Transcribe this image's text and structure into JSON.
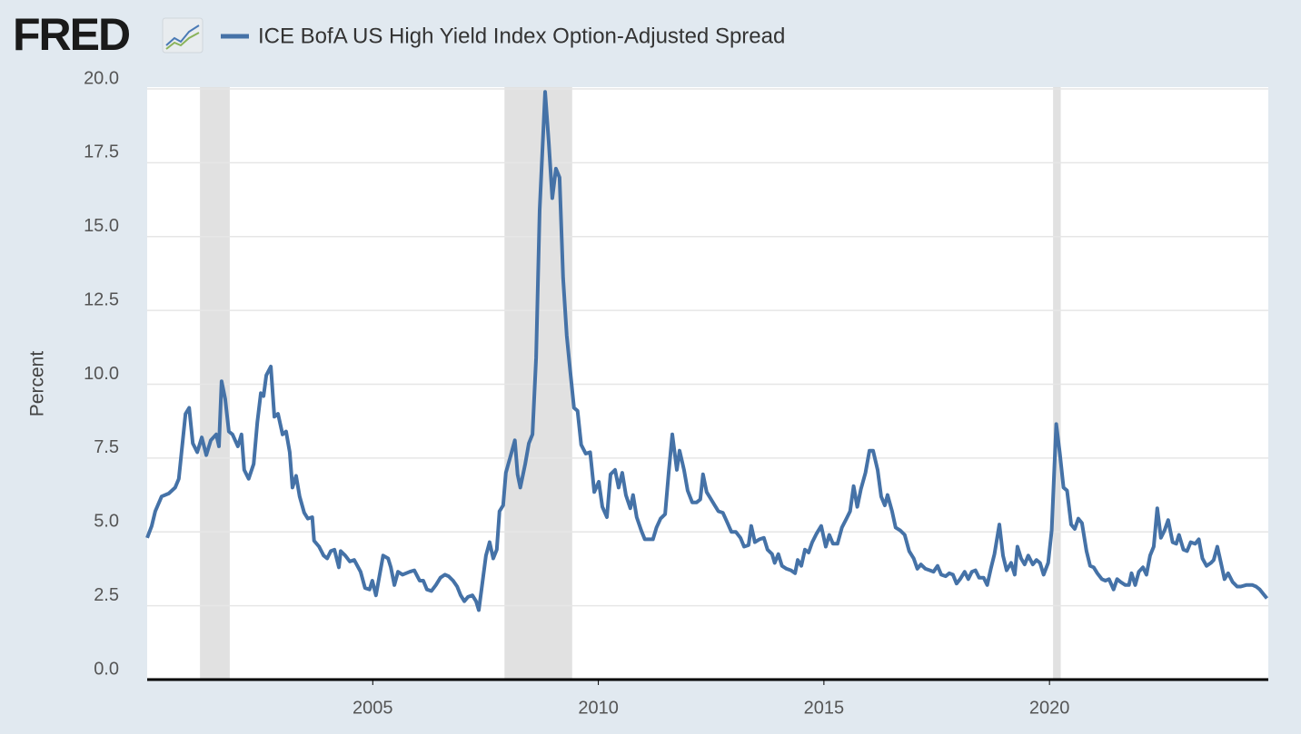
{
  "chart_data": {
    "type": "line",
    "source": "FRED",
    "ylabel": "Percent",
    "xlim": [
      2000,
      2024.85
    ],
    "xticks": [
      2005,
      2010,
      2015,
      2020
    ],
    "ylim": [
      0,
      20
    ],
    "yticks": [
      {
        "value": 0,
        "label": "0.0"
      },
      2.5,
      {
        "value": 5,
        "label": "5.0"
      },
      7.5,
      {
        "value": 10,
        "label": "10.0"
      },
      12.5,
      {
        "value": 15,
        "label": "15.0"
      },
      17.5,
      {
        "value": 20,
        "label": "20.0"
      }
    ],
    "grid": true,
    "recessions": [
      [
        2001.17,
        2001.83
      ],
      [
        2007.92,
        2009.42
      ],
      [
        2020.08,
        2020.25
      ]
    ],
    "recession_color": "#e1e1e1",
    "x": [
      2000.0,
      2000.1,
      2000.18,
      2000.32,
      2000.48,
      2000.62,
      2000.7,
      2000.85,
      2000.93,
      2001.01,
      2001.11,
      2001.21,
      2001.31,
      2001.41,
      2001.53,
      2001.59,
      2001.65,
      2001.73,
      2001.81,
      2001.89,
      2002.01,
      2002.09,
      2002.15,
      2002.25,
      2002.36,
      2002.44,
      2002.52,
      2002.58,
      2002.64,
      2002.74,
      2002.82,
      2002.9,
      2003.0,
      2003.08,
      2003.16,
      2003.22,
      2003.3,
      2003.38,
      2003.48,
      2003.56,
      2003.66,
      2003.7,
      2003.81,
      2003.91,
      2003.99,
      2004.07,
      2004.15,
      2004.25,
      2004.29,
      2004.39,
      2004.49,
      2004.59,
      2004.73,
      2004.83,
      2004.93,
      2004.99,
      2005.07,
      2005.13,
      2005.23,
      2005.34,
      2005.4,
      2005.48,
      2005.56,
      2005.66,
      2005.74,
      2005.82,
      2005.92,
      2006.04,
      2006.12,
      2006.2,
      2006.3,
      2006.4,
      2006.5,
      2006.6,
      2006.68,
      2006.78,
      2006.87,
      2006.95,
      2007.03,
      2007.11,
      2007.21,
      2007.29,
      2007.35,
      2007.41,
      2007.51,
      2007.59,
      2007.67,
      2007.75,
      2007.81,
      2007.89,
      2007.95,
      2008.07,
      2008.15,
      2008.21,
      2008.27,
      2008.38,
      2008.46,
      2008.54,
      2008.62,
      2008.7,
      2008.82,
      2008.9,
      2008.98,
      2009.06,
      2009.14,
      2009.22,
      2009.3,
      2009.38,
      2009.46,
      2009.54,
      2009.62,
      2009.72,
      2009.82,
      2009.91,
      2010.01,
      2010.09,
      2010.19,
      2010.27,
      2010.37,
      2010.45,
      2010.53,
      2010.61,
      2010.71,
      2010.77,
      2010.85,
      2010.95,
      2011.03,
      2011.21,
      2011.29,
      2011.38,
      2011.48,
      2011.56,
      2011.64,
      2011.74,
      2011.8,
      2011.9,
      2011.98,
      2012.08,
      2012.18,
      2012.26,
      2012.32,
      2012.4,
      2012.5,
      2012.58,
      2012.66,
      2012.76,
      2012.85,
      2012.95,
      2013.05,
      2013.15,
      2013.23,
      2013.33,
      2013.39,
      2013.47,
      2013.57,
      2013.67,
      2013.75,
      2013.85,
      2013.91,
      2013.99,
      2014.07,
      2014.17,
      2014.27,
      2014.36,
      2014.42,
      2014.5,
      2014.58,
      2014.66,
      2014.74,
      2014.84,
      2014.94,
      2015.04,
      2015.12,
      2015.2,
      2015.3,
      2015.4,
      2015.5,
      2015.58,
      2015.66,
      2015.74,
      2015.82,
      2015.92,
      2016.01,
      2016.09,
      2016.19,
      2016.27,
      2016.35,
      2016.41,
      2016.51,
      2016.59,
      2016.69,
      2016.79,
      2016.89,
      2016.99,
      2017.07,
      2017.15,
      2017.25,
      2017.35,
      2017.43,
      2017.52,
      2017.6,
      2017.7,
      2017.78,
      2017.86,
      2017.94,
      2018.02,
      2018.12,
      2018.2,
      2018.28,
      2018.36,
      2018.44,
      2018.54,
      2018.62,
      2018.7,
      2018.78,
      2018.89,
      2018.97,
      2019.05,
      2019.15,
      2019.23,
      2019.29,
      2019.37,
      2019.45,
      2019.53,
      2019.63,
      2019.71,
      2019.79,
      2019.87,
      2019.97,
      2020.05,
      2020.15,
      2020.23,
      2020.31,
      2020.39,
      2020.48,
      2020.56,
      2020.64,
      2020.72,
      2020.82,
      2020.9,
      2020.98,
      2021.06,
      2021.16,
      2021.24,
      2021.32,
      2021.42,
      2021.5,
      2021.58,
      2021.68,
      2021.76,
      2021.82,
      2021.9,
      2021.98,
      2022.07,
      2022.15,
      2022.23,
      2022.31,
      2022.39,
      2022.47,
      2022.55,
      2022.63,
      2022.73,
      2022.81,
      2022.87,
      2022.97,
      2023.05,
      2023.13,
      2023.23,
      2023.31,
      2023.39,
      2023.48,
      2023.58,
      2023.64,
      2023.72,
      2023.8,
      2023.88,
      2023.96,
      2024.06,
      2024.16,
      2024.24,
      2024.36,
      2024.5,
      2024.58,
      2024.66,
      2024.74,
      2024.82
    ],
    "series": [
      {
        "name": "ICE BofA US High Yield Index Option-Adjusted Spread",
        "color": "#4572a7",
        "values": [
          4.8,
          5.2,
          5.7,
          6.2,
          6.3,
          6.5,
          6.8,
          9.0,
          9.2,
          8.0,
          7.7,
          8.2,
          7.6,
          8.1,
          8.3,
          7.9,
          10.1,
          9.5,
          8.4,
          8.3,
          7.9,
          8.3,
          7.1,
          6.8,
          7.3,
          8.7,
          9.7,
          9.6,
          10.3,
          10.6,
          8.9,
          9.0,
          8.3,
          8.4,
          7.7,
          6.5,
          6.9,
          6.2,
          5.65,
          5.45,
          5.5,
          4.7,
          4.5,
          4.2,
          4.1,
          4.35,
          4.4,
          3.8,
          4.35,
          4.2,
          4.0,
          4.05,
          3.65,
          3.1,
          3.05,
          3.35,
          2.85,
          3.35,
          4.2,
          4.1,
          3.8,
          3.2,
          3.65,
          3.55,
          3.6,
          3.65,
          3.7,
          3.35,
          3.35,
          3.05,
          3.0,
          3.2,
          3.45,
          3.55,
          3.5,
          3.35,
          3.15,
          2.85,
          2.65,
          2.8,
          2.85,
          2.65,
          2.35,
          3.05,
          4.2,
          4.65,
          4.1,
          4.4,
          5.7,
          5.9,
          7.0,
          7.65,
          8.1,
          6.95,
          6.5,
          7.3,
          8.0,
          8.3,
          10.9,
          15.9,
          19.9,
          18.2,
          16.3,
          17.3,
          17.0,
          13.6,
          11.65,
          10.4,
          9.2,
          9.1,
          7.95,
          7.65,
          7.7,
          6.35,
          6.7,
          5.85,
          5.5,
          6.95,
          7.1,
          6.5,
          7.0,
          6.25,
          5.8,
          6.25,
          5.5,
          5.05,
          4.75,
          4.75,
          5.15,
          5.45,
          5.6,
          7.0,
          8.3,
          7.1,
          7.75,
          7.1,
          6.4,
          6.0,
          6.0,
          6.1,
          6.95,
          6.35,
          6.1,
          5.9,
          5.7,
          5.65,
          5.35,
          5.0,
          5.0,
          4.8,
          4.5,
          4.55,
          5.2,
          4.65,
          4.75,
          4.8,
          4.4,
          4.25,
          3.95,
          4.25,
          3.85,
          3.75,
          3.7,
          3.6,
          4.05,
          3.85,
          4.4,
          4.3,
          4.65,
          4.95,
          5.2,
          4.5,
          4.9,
          4.6,
          4.6,
          5.15,
          5.45,
          5.7,
          6.55,
          5.85,
          6.45,
          7.0,
          7.75,
          7.75,
          7.1,
          6.2,
          5.9,
          6.25,
          5.7,
          5.15,
          5.05,
          4.9,
          4.35,
          4.1,
          3.75,
          3.9,
          3.75,
          3.7,
          3.65,
          3.85,
          3.55,
          3.5,
          3.6,
          3.55,
          3.25,
          3.4,
          3.65,
          3.4,
          3.65,
          3.7,
          3.45,
          3.45,
          3.2,
          3.75,
          4.25,
          5.25,
          4.2,
          3.7,
          3.95,
          3.55,
          4.5,
          4.1,
          3.9,
          4.2,
          3.9,
          4.05,
          3.95,
          3.55,
          3.95,
          5.05,
          8.65,
          7.65,
          6.5,
          6.4,
          5.25,
          5.1,
          5.45,
          5.3,
          4.35,
          3.85,
          3.8,
          3.6,
          3.4,
          3.35,
          3.4,
          3.05,
          3.4,
          3.3,
          3.2,
          3.2,
          3.6,
          3.2,
          3.65,
          3.8,
          3.55,
          4.2,
          4.5,
          5.8,
          4.8,
          5.05,
          5.4,
          4.65,
          4.6,
          4.9,
          4.4,
          4.35,
          4.65,
          4.6,
          4.75,
          4.1,
          3.85,
          3.95,
          4.05,
          4.5,
          3.95,
          3.4,
          3.6,
          3.3,
          3.15,
          3.15,
          3.2,
          3.2,
          3.15,
          3.05,
          2.9,
          2.75
        ]
      }
    ]
  }
}
